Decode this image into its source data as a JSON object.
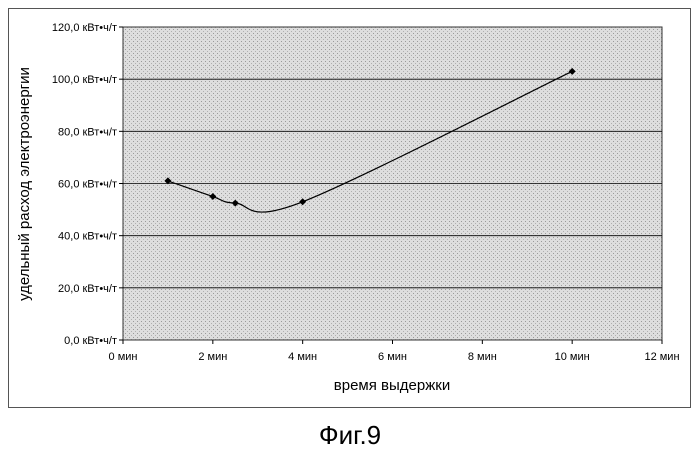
{
  "chart_data": {
    "type": "scatter",
    "smoothed_line": true,
    "xlabel": "время выдержки",
    "ylabel": "удельный расход электроэнергии",
    "xlim": [
      0,
      12
    ],
    "ylim": [
      0,
      120
    ],
    "x_ticks": [
      {
        "value": 0,
        "label": "0 мин"
      },
      {
        "value": 2,
        "label": "2 мин"
      },
      {
        "value": 4,
        "label": "4 мин"
      },
      {
        "value": 6,
        "label": "6 мин"
      },
      {
        "value": 8,
        "label": "8 мин"
      },
      {
        "value": 10,
        "label": "10 мин"
      },
      {
        "value": 12,
        "label": "12 мин"
      }
    ],
    "y_ticks": [
      {
        "value": 0,
        "label": "0,0 кВт•ч/т"
      },
      {
        "value": 20,
        "label": "20,0 кВт•ч/т"
      },
      {
        "value": 40,
        "label": "40,0 кВт•ч/т"
      },
      {
        "value": 60,
        "label": "60,0 кВт•ч/т"
      },
      {
        "value": 80,
        "label": "80,0 кВт•ч/т"
      },
      {
        "value": 100,
        "label": "100,0 кВт•ч/т"
      },
      {
        "value": 120,
        "label": "120,0 кВт•ч/т"
      }
    ],
    "series": [
      {
        "x": [
          1,
          2,
          2.5,
          4,
          10
        ],
        "y": [
          61,
          55,
          52.5,
          53,
          103
        ]
      }
    ],
    "grid": "horizontal",
    "colors": {
      "plot_background": "#d8d8d8",
      "line": "#000000",
      "marker": "#000000",
      "grid": "#000000"
    }
  },
  "caption": "Фиг.9"
}
